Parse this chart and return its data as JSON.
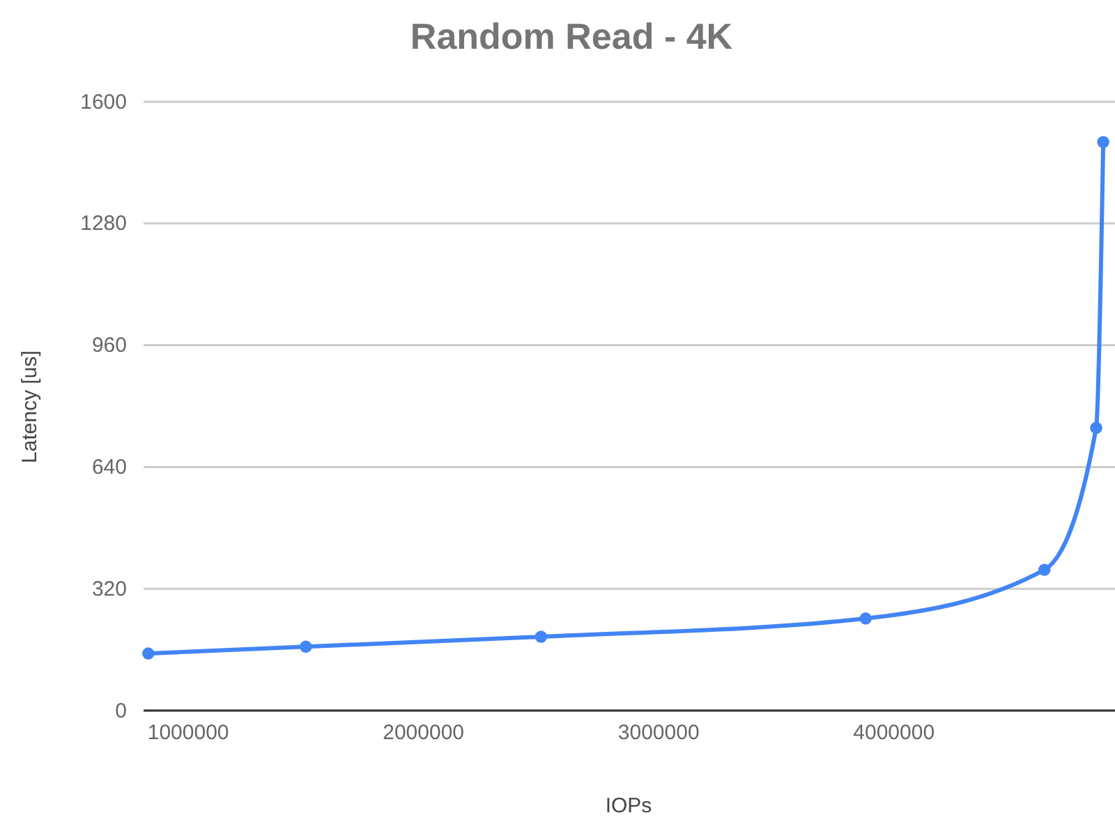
{
  "chart_data": {
    "type": "line",
    "title": "Random Read - 4K",
    "xlabel": "IOPs",
    "ylabel": "Latency [us]",
    "x": [
      830000,
      1500000,
      2500000,
      3880000,
      4640000,
      4860000,
      4890000
    ],
    "series": [
      {
        "color": "#4285f4",
        "values": [
          150,
          168,
          194,
          242,
          370,
          743,
          1494
        ]
      }
    ],
    "xlim": [
      810000,
      4940000
    ],
    "xticks": [
      1000000,
      2000000,
      3000000,
      4000000
    ],
    "ylim": [
      0,
      1600
    ],
    "yticks": [
      0,
      320,
      640,
      960,
      1280,
      1600
    ],
    "grid": "y",
    "marker": "circle",
    "line_style": "solid"
  }
}
